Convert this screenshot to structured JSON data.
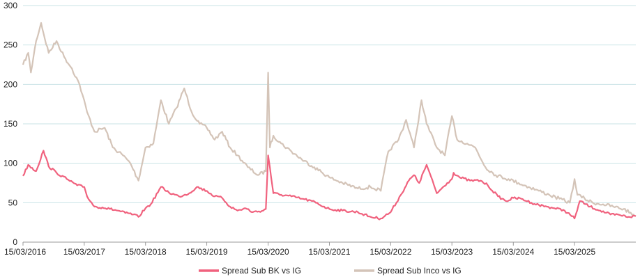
{
  "chart_data": {
    "type": "line",
    "title": "",
    "xlabel": "",
    "ylabel": "",
    "ylim": [
      0,
      300
    ],
    "y_ticks": [
      0,
      50,
      100,
      150,
      200,
      250,
      300
    ],
    "x_range": [
      "2016-03-15",
      "2026-03-15"
    ],
    "x_ticks": [
      {
        "date": "2016-03-15",
        "label": "15/03/2016"
      },
      {
        "date": "2017-03-15",
        "label": "15/03/2017"
      },
      {
        "date": "2018-03-15",
        "label": "15/03/2018"
      },
      {
        "date": "2019-03-15",
        "label": "15/03/2019"
      },
      {
        "date": "2020-03-15",
        "label": "15/03/2020"
      },
      {
        "date": "2021-03-15",
        "label": "15/03/2021"
      },
      {
        "date": "2022-03-15",
        "label": "15/03/2022"
      },
      {
        "date": "2023-03-15",
        "label": "15/03/2023"
      },
      {
        "date": "2024-03-15",
        "label": "15/03/2024"
      },
      {
        "date": "2025-03-15",
        "label": "15/03/2025"
      }
    ],
    "grid": "horizontal",
    "legend_position": "bottom",
    "series": [
      {
        "name": "Spread Sub BK vs IG",
        "color": "#f0627e",
        "x": [
          "2016-03-15",
          "2016-04-15",
          "2016-06-01",
          "2016-07-15",
          "2016-08-15",
          "2016-10-01",
          "2016-12-01",
          "2017-02-01",
          "2017-03-15",
          "2017-04-01",
          "2017-05-15",
          "2017-07-01",
          "2017-08-15",
          "2017-10-01",
          "2017-11-15",
          "2018-01-01",
          "2018-02-01",
          "2018-03-15",
          "2018-04-15",
          "2018-06-15",
          "2018-08-01",
          "2018-10-01",
          "2018-12-01",
          "2019-01-15",
          "2019-03-15",
          "2019-05-01",
          "2019-06-15",
          "2019-08-01",
          "2019-09-15",
          "2019-11-01",
          "2019-12-15",
          "2020-02-15",
          "2020-03-01",
          "2020-03-15",
          "2020-03-25",
          "2020-04-15",
          "2020-06-01",
          "2020-08-01",
          "2020-10-01",
          "2020-12-01",
          "2021-03-15",
          "2021-06-01",
          "2021-09-01",
          "2021-11-15",
          "2022-01-15",
          "2022-03-15",
          "2022-05-15",
          "2022-07-01",
          "2022-08-01",
          "2022-09-01",
          "2022-10-15",
          "2022-12-15",
          "2023-02-15",
          "2023-03-15",
          "2023-03-25",
          "2023-05-01",
          "2023-07-01",
          "2023-09-01",
          "2023-10-15",
          "2023-12-15",
          "2024-02-01",
          "2024-03-15",
          "2024-05-01",
          "2024-07-01",
          "2024-08-15",
          "2024-10-01",
          "2024-11-15",
          "2025-01-15",
          "2025-03-15",
          "2025-04-15",
          "2025-06-15",
          "2025-08-15",
          "2025-10-15",
          "2025-12-15",
          "2026-02-01",
          "2026-03-15"
        ],
        "values": [
          84,
          98,
          90,
          116,
          96,
          88,
          80,
          72,
          70,
          58,
          45,
          44,
          42,
          40,
          37,
          35,
          32,
          43,
          48,
          70,
          63,
          58,
          62,
          70,
          65,
          58,
          56,
          45,
          40,
          43,
          38,
          40,
          42,
          110,
          95,
          62,
          60,
          58,
          55,
          52,
          42,
          40,
          38,
          32,
          30,
          38,
          60,
          78,
          85,
          75,
          98,
          62,
          75,
          80,
          88,
          82,
          78,
          78,
          72,
          58,
          52,
          56,
          55,
          50,
          47,
          45,
          43,
          40,
          30,
          52,
          45,
          40,
          35,
          34,
          32,
          33
        ]
      },
      {
        "name": "Spread Sub Inco vs IG",
        "color": "#d4c4b8",
        "x": [
          "2016-03-15",
          "2016-04-15",
          "2016-05-01",
          "2016-06-01",
          "2016-07-01",
          "2016-07-15",
          "2016-08-15",
          "2016-10-01",
          "2016-11-15",
          "2017-01-01",
          "2017-02-15",
          "2017-04-01",
          "2017-05-15",
          "2017-07-15",
          "2017-09-01",
          "2017-11-01",
          "2017-12-15",
          "2018-02-01",
          "2018-03-15",
          "2018-05-01",
          "2018-06-15",
          "2018-08-01",
          "2018-09-15",
          "2018-11-01",
          "2018-12-15",
          "2019-02-01",
          "2019-03-15",
          "2019-05-01",
          "2019-06-15",
          "2019-08-01",
          "2019-09-15",
          "2019-11-15",
          "2020-01-15",
          "2020-03-01",
          "2020-03-15",
          "2020-03-25",
          "2020-04-15",
          "2020-06-01",
          "2020-08-01",
          "2020-10-01",
          "2020-12-15",
          "2021-03-15",
          "2021-06-01",
          "2021-09-01",
          "2021-11-15",
          "2022-01-15",
          "2022-03-01",
          "2022-05-01",
          "2022-06-15",
          "2022-08-01",
          "2022-09-15",
          "2022-10-15",
          "2022-12-15",
          "2023-02-01",
          "2023-03-15",
          "2023-04-15",
          "2023-06-15",
          "2023-08-01",
          "2023-10-01",
          "2023-12-01",
          "2024-02-15",
          "2024-04-15",
          "2024-06-15",
          "2024-08-15",
          "2024-10-15",
          "2024-12-15",
          "2025-02-15",
          "2025-03-15",
          "2025-04-01",
          "2025-05-15",
          "2025-07-01",
          "2025-09-01",
          "2025-11-01",
          "2026-01-01",
          "2026-03-01",
          "2026-03-15"
        ],
        "values": [
          225,
          240,
          215,
          255,
          278,
          265,
          240,
          255,
          235,
          220,
          200,
          165,
          140,
          145,
          120,
          110,
          100,
          78,
          120,
          125,
          180,
          150,
          170,
          195,
          165,
          150,
          145,
          130,
          140,
          120,
          110,
          95,
          85,
          90,
          215,
          120,
          135,
          125,
          115,
          105,
          95,
          82,
          75,
          68,
          70,
          65,
          115,
          130,
          155,
          120,
          180,
          150,
          120,
          110,
          160,
          130,
          125,
          120,
          95,
          85,
          80,
          75,
          70,
          65,
          60,
          55,
          50,
          80,
          60,
          55,
          50,
          48,
          45,
          42,
          35,
          33
        ]
      }
    ]
  }
}
